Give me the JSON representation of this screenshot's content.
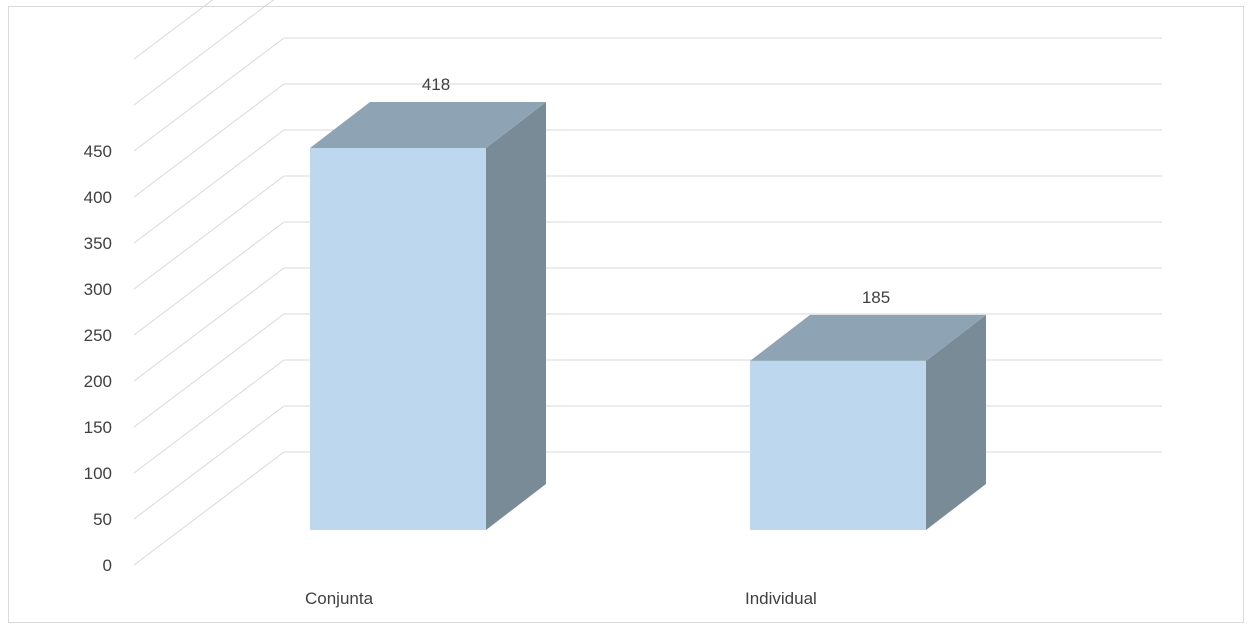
{
  "chart_data": {
    "type": "bar",
    "categories": [
      "Conjunta",
      "Individual"
    ],
    "values": [
      418,
      185
    ],
    "data_labels": [
      "418",
      "185"
    ],
    "y_ticks": [
      "0",
      "50",
      "100",
      "150",
      "200",
      "250",
      "300",
      "350",
      "400",
      "450"
    ],
    "ylim": [
      0,
      450
    ],
    "grid": true,
    "legend": false,
    "style": "3d-column",
    "colors": {
      "front": "#bdd7ee",
      "top": "#8ea4b5",
      "side": "#7a8b98",
      "gridline": "#d9d9d9",
      "text": "#404040",
      "frame": "#d9d9d9"
    }
  }
}
